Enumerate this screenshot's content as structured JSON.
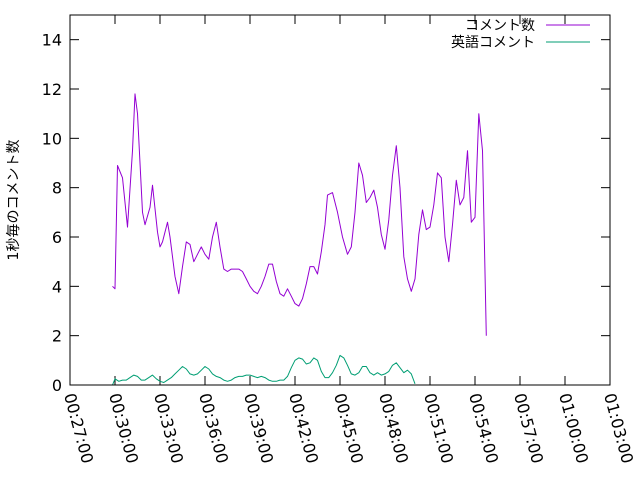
{
  "chart_data": {
    "type": "line",
    "ylabel": "1秒毎のコメント数",
    "ylim": [
      0,
      15
    ],
    "yticks": [
      "0",
      "2",
      "4",
      "6",
      "8",
      "10",
      "12",
      "14"
    ],
    "xlim": [
      "00:27:00",
      "01:03:00"
    ],
    "xticks": [
      "00:27:00",
      "00:30:00",
      "00:33:00",
      "00:36:00",
      "00:39:00",
      "00:42:00",
      "00:45:00",
      "00:48:00",
      "00:51:00",
      "00:54:00",
      "00:57:00",
      "01:00:00",
      "01:03:00"
    ],
    "legend_position": "top-right",
    "series": [
      {
        "name": "コメント数",
        "color": "#9400d3",
        "points": [
          [
            "00:29:50",
            4.0
          ],
          [
            "00:30:00",
            3.9
          ],
          [
            "00:30:10",
            8.9
          ],
          [
            "00:30:30",
            8.4
          ],
          [
            "00:30:50",
            6.4
          ],
          [
            "00:31:10",
            9.5
          ],
          [
            "00:31:20",
            11.8
          ],
          [
            "00:31:30",
            11.0
          ],
          [
            "00:31:40",
            9.0
          ],
          [
            "00:31:50",
            7.0
          ],
          [
            "00:32:00",
            6.5
          ],
          [
            "00:32:20",
            7.2
          ],
          [
            "00:32:30",
            8.1
          ],
          [
            "00:32:50",
            6.2
          ],
          [
            "00:33:00",
            5.6
          ],
          [
            "00:33:10",
            5.8
          ],
          [
            "00:33:30",
            6.6
          ],
          [
            "00:33:40",
            6.0
          ],
          [
            "00:34:00",
            4.4
          ],
          [
            "00:34:15",
            3.7
          ],
          [
            "00:34:30",
            4.8
          ],
          [
            "00:34:45",
            5.8
          ],
          [
            "00:35:00",
            5.7
          ],
          [
            "00:35:15",
            5.0
          ],
          [
            "00:35:30",
            5.3
          ],
          [
            "00:35:45",
            5.6
          ],
          [
            "00:36:00",
            5.3
          ],
          [
            "00:36:15",
            5.1
          ],
          [
            "00:36:30",
            6.0
          ],
          [
            "00:36:45",
            6.6
          ],
          [
            "00:37:00",
            5.6
          ],
          [
            "00:37:15",
            4.7
          ],
          [
            "00:37:30",
            4.6
          ],
          [
            "00:37:45",
            4.7
          ],
          [
            "00:38:00",
            4.7
          ],
          [
            "00:38:15",
            4.7
          ],
          [
            "00:38:30",
            4.6
          ],
          [
            "00:38:45",
            4.3
          ],
          [
            "00:39:00",
            4.0
          ],
          [
            "00:39:15",
            3.8
          ],
          [
            "00:39:30",
            3.7
          ],
          [
            "00:39:45",
            4.0
          ],
          [
            "00:40:00",
            4.4
          ],
          [
            "00:40:15",
            4.9
          ],
          [
            "00:40:30",
            4.9
          ],
          [
            "00:40:45",
            4.2
          ],
          [
            "00:41:00",
            3.7
          ],
          [
            "00:41:15",
            3.6
          ],
          [
            "00:41:30",
            3.9
          ],
          [
            "00:41:45",
            3.6
          ],
          [
            "00:42:00",
            3.3
          ],
          [
            "00:42:15",
            3.2
          ],
          [
            "00:42:30",
            3.5
          ],
          [
            "00:42:45",
            4.1
          ],
          [
            "00:43:00",
            4.8
          ],
          [
            "00:43:15",
            4.8
          ],
          [
            "00:43:30",
            4.5
          ],
          [
            "00:43:45",
            5.4
          ],
          [
            "00:44:00",
            6.5
          ],
          [
            "00:44:10",
            7.7
          ],
          [
            "00:44:30",
            7.8
          ],
          [
            "00:44:50",
            7.0
          ],
          [
            "00:45:10",
            6.0
          ],
          [
            "00:45:30",
            5.3
          ],
          [
            "00:45:45",
            5.6
          ],
          [
            "00:46:00",
            7.0
          ],
          [
            "00:46:15",
            9.0
          ],
          [
            "00:46:30",
            8.5
          ],
          [
            "00:46:45",
            7.4
          ],
          [
            "00:47:00",
            7.6
          ],
          [
            "00:47:15",
            7.9
          ],
          [
            "00:47:30",
            7.2
          ],
          [
            "00:47:45",
            6.1
          ],
          [
            "00:48:00",
            5.5
          ],
          [
            "00:48:15",
            6.7
          ],
          [
            "00:48:30",
            8.5
          ],
          [
            "00:48:45",
            9.7
          ],
          [
            "00:49:00",
            8.0
          ],
          [
            "00:49:15",
            5.2
          ],
          [
            "00:49:30",
            4.3
          ],
          [
            "00:49:45",
            3.8
          ],
          [
            "00:50:00",
            4.3
          ],
          [
            "00:50:15",
            6.1
          ],
          [
            "00:50:30",
            7.1
          ],
          [
            "00:50:45",
            6.3
          ],
          [
            "00:51:00",
            6.4
          ],
          [
            "00:51:15",
            7.3
          ],
          [
            "00:51:30",
            8.6
          ],
          [
            "00:51:45",
            8.4
          ],
          [
            "00:52:00",
            6.0
          ],
          [
            "00:52:15",
            5.0
          ],
          [
            "00:52:30",
            6.5
          ],
          [
            "00:52:45",
            8.3
          ],
          [
            "00:53:00",
            7.3
          ],
          [
            "00:53:15",
            7.6
          ],
          [
            "00:53:30",
            9.5
          ],
          [
            "00:53:45",
            6.6
          ],
          [
            "00:54:00",
            6.8
          ],
          [
            "00:54:15",
            11.0
          ],
          [
            "00:54:30",
            9.5
          ],
          [
            "00:54:45",
            2.0
          ]
        ]
      },
      {
        "name": "英語コメント",
        "color": "#009e73",
        "points": [
          [
            "00:29:50",
            0.0
          ],
          [
            "00:30:00",
            0.25
          ],
          [
            "00:30:15",
            0.15
          ],
          [
            "00:30:30",
            0.2
          ],
          [
            "00:30:45",
            0.2
          ],
          [
            "00:31:00",
            0.3
          ],
          [
            "00:31:15",
            0.4
          ],
          [
            "00:31:30",
            0.35
          ],
          [
            "00:31:45",
            0.2
          ],
          [
            "00:32:00",
            0.2
          ],
          [
            "00:32:15",
            0.3
          ],
          [
            "00:32:30",
            0.4
          ],
          [
            "00:32:45",
            0.25
          ],
          [
            "00:33:00",
            0.15
          ],
          [
            "00:33:15",
            0.1
          ],
          [
            "00:33:30",
            0.2
          ],
          [
            "00:33:45",
            0.3
          ],
          [
            "00:34:00",
            0.45
          ],
          [
            "00:34:15",
            0.6
          ],
          [
            "00:34:30",
            0.75
          ],
          [
            "00:34:45",
            0.65
          ],
          [
            "00:35:00",
            0.45
          ],
          [
            "00:35:15",
            0.4
          ],
          [
            "00:35:30",
            0.45
          ],
          [
            "00:35:45",
            0.6
          ],
          [
            "00:36:00",
            0.75
          ],
          [
            "00:36:15",
            0.65
          ],
          [
            "00:36:30",
            0.45
          ],
          [
            "00:36:45",
            0.35
          ],
          [
            "00:37:00",
            0.3
          ],
          [
            "00:37:15",
            0.2
          ],
          [
            "00:37:30",
            0.15
          ],
          [
            "00:37:45",
            0.2
          ],
          [
            "00:38:00",
            0.3
          ],
          [
            "00:38:15",
            0.35
          ],
          [
            "00:38:30",
            0.35
          ],
          [
            "00:38:45",
            0.4
          ],
          [
            "00:39:00",
            0.4
          ],
          [
            "00:39:15",
            0.35
          ],
          [
            "00:39:30",
            0.3
          ],
          [
            "00:39:45",
            0.35
          ],
          [
            "00:40:00",
            0.3
          ],
          [
            "00:40:15",
            0.2
          ],
          [
            "00:40:30",
            0.15
          ],
          [
            "00:40:45",
            0.15
          ],
          [
            "00:41:00",
            0.2
          ],
          [
            "00:41:15",
            0.2
          ],
          [
            "00:41:30",
            0.35
          ],
          [
            "00:41:45",
            0.7
          ],
          [
            "00:42:00",
            1.0
          ],
          [
            "00:42:15",
            1.1
          ],
          [
            "00:42:30",
            1.05
          ],
          [
            "00:42:45",
            0.85
          ],
          [
            "00:43:00",
            0.9
          ],
          [
            "00:43:15",
            1.1
          ],
          [
            "00:43:30",
            1.0
          ],
          [
            "00:43:45",
            0.55
          ],
          [
            "00:44:00",
            0.3
          ],
          [
            "00:44:15",
            0.3
          ],
          [
            "00:44:30",
            0.5
          ],
          [
            "00:44:45",
            0.8
          ],
          [
            "00:45:00",
            1.2
          ],
          [
            "00:45:15",
            1.1
          ],
          [
            "00:45:30",
            0.8
          ],
          [
            "00:45:45",
            0.45
          ],
          [
            "00:46:00",
            0.4
          ],
          [
            "00:46:15",
            0.5
          ],
          [
            "00:46:30",
            0.75
          ],
          [
            "00:46:45",
            0.75
          ],
          [
            "00:47:00",
            0.5
          ],
          [
            "00:47:15",
            0.4
          ],
          [
            "00:47:30",
            0.5
          ],
          [
            "00:47:45",
            0.4
          ],
          [
            "00:48:00",
            0.45
          ],
          [
            "00:48:15",
            0.55
          ],
          [
            "00:48:30",
            0.8
          ],
          [
            "00:48:45",
            0.9
          ],
          [
            "00:49:00",
            0.7
          ],
          [
            "00:49:15",
            0.5
          ],
          [
            "00:49:30",
            0.6
          ],
          [
            "00:49:45",
            0.45
          ],
          [
            "00:50:00",
            0.05
          ]
        ]
      }
    ]
  }
}
